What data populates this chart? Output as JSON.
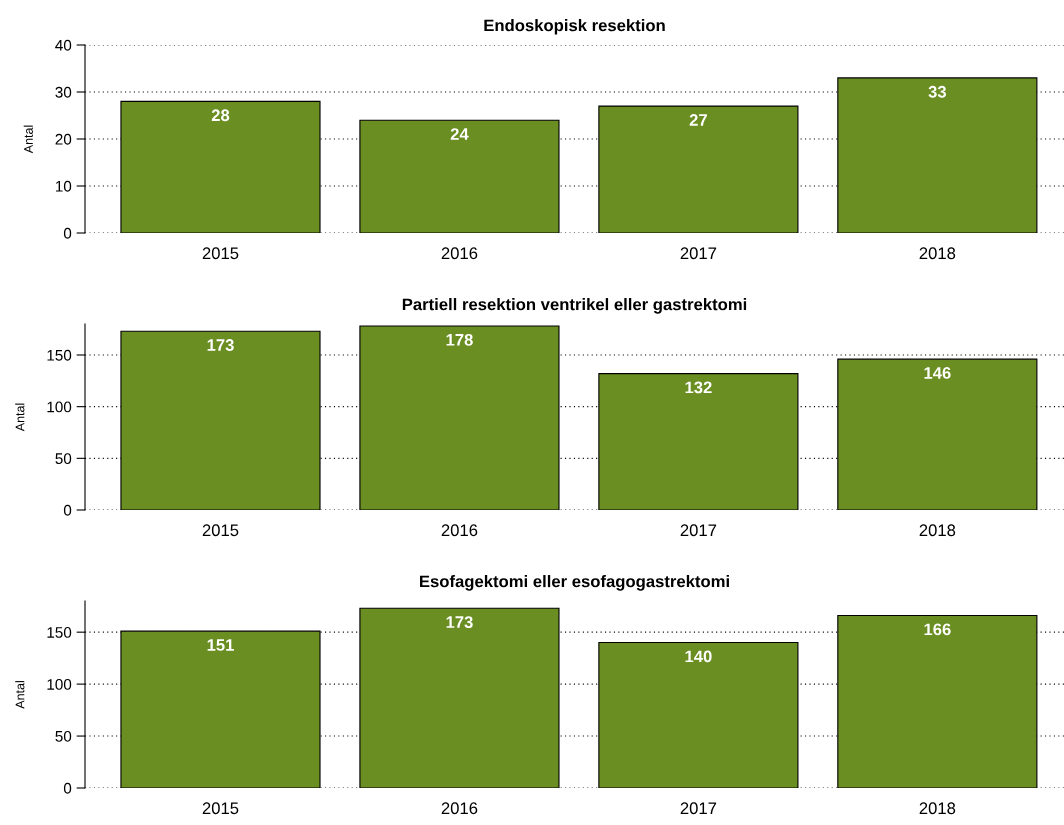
{
  "chart_data": [
    {
      "type": "bar",
      "title": "Endoskopisk resektion",
      "ylabel": "Antal",
      "categories": [
        "2015",
        "2016",
        "2017",
        "2018"
      ],
      "values": [
        28,
        24,
        27,
        33
      ],
      "color": "#6b8e23",
      "ylim": [
        0,
        40
      ],
      "yticks": [
        0,
        10,
        20,
        30,
        40
      ],
      "grid": "y",
      "data_labels": true
    },
    {
      "type": "bar",
      "title": "Partiell resektion ventrikel eller gastrektomi",
      "ylabel": "Antal",
      "categories": [
        "2015",
        "2016",
        "2017",
        "2018"
      ],
      "values": [
        173,
        178,
        132,
        146
      ],
      "color": "#6b8e23",
      "ylim": [
        0,
        180
      ],
      "yticks": [
        0,
        50,
        100,
        150
      ],
      "grid": "y",
      "data_labels": true
    },
    {
      "type": "bar",
      "title": "Esofagektomi eller esofagogastrektomi",
      "ylabel": "Antal",
      "categories": [
        "2015",
        "2016",
        "2017",
        "2018"
      ],
      "values": [
        151,
        173,
        140,
        166
      ],
      "color": "#6b8e23",
      "ylim": [
        0,
        180
      ],
      "yticks": [
        0,
        50,
        100,
        150
      ],
      "grid": "y",
      "data_labels": true
    }
  ]
}
